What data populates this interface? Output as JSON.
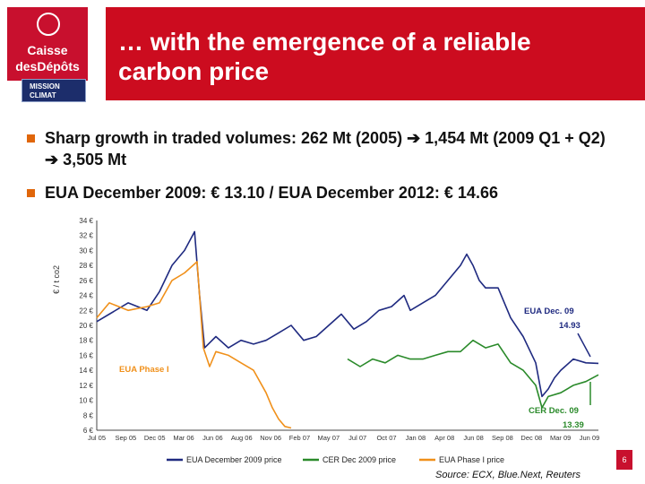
{
  "logo": {
    "line1": "Caisse",
    "line2": "desDépôts",
    "mission_line1": "MISSION",
    "mission_line2": "CLIMAT"
  },
  "title": "… with the emergence of a reliable carbon price",
  "bullets": [
    "Sharp growth in traded volumes: 262 Mt (2005) ➔ 1,454 Mt (2009 Q1 + Q2) ➔ 3,505 Mt",
    "EUA December 2009: € 13.10 / EUA December 2012: € 14.66"
  ],
  "page_number": "6",
  "source": "Source: ECX, Blue.Next, Reuters",
  "colors": {
    "title_bg": "#cc0c1f",
    "bullet": "#e0660a",
    "eua": "#1f2a80",
    "cer": "#2a8a2a",
    "phase1": "#f0901a"
  },
  "chart_data": {
    "type": "line",
    "ylabel": "€ / t co2",
    "y_ticks": [
      "34 €",
      "32 €",
      "30 €",
      "28 €",
      "26 €",
      "24 €",
      "22 €",
      "20 €",
      "18 €",
      "16 €",
      "14 €",
      "12 €",
      "10 €",
      "8 €",
      "6 €"
    ],
    "x_ticks": [
      "Jul 05",
      "Sep 05",
      "Dec 05",
      "Mar 06",
      "Jun 06",
      "Aug 06",
      "Nov 06",
      "Feb 07",
      "May 07",
      "Jul 07",
      "Oct 07",
      "Jan 08",
      "Apr 08",
      "Jun 08",
      "Sep 08",
      "Dec 08",
      "Mar 09",
      "Jun 09"
    ],
    "ylim": [
      6,
      34
    ],
    "x_range": [
      2005.5,
      2009.5
    ],
    "series": [
      {
        "name": "EUA December 2009 price",
        "x": [
          2005.5,
          2005.6,
          2005.75,
          2005.9,
          2006.0,
          2006.1,
          2006.2,
          2006.28,
          2006.32,
          2006.36,
          2006.45,
          2006.55,
          2006.65,
          2006.75,
          2006.85,
          2006.95,
          2007.05,
          2007.15,
          2007.25,
          2007.35,
          2007.45,
          2007.55,
          2007.65,
          2007.75,
          2007.85,
          2007.95,
          2008.0,
          2008.1,
          2008.2,
          2008.3,
          2008.4,
          2008.45,
          2008.5,
          2008.55,
          2008.6,
          2008.7,
          2008.8,
          2008.9,
          2009.0,
          2009.05,
          2009.1,
          2009.15,
          2009.2,
          2009.3,
          2009.4,
          2009.5
        ],
        "values": [
          20.5,
          21.5,
          23,
          22,
          24.5,
          28,
          30,
          32.5,
          24,
          17,
          18.5,
          17,
          18,
          17.5,
          18,
          19,
          20,
          18,
          18.5,
          20,
          21.5,
          19.5,
          20.5,
          22,
          22.5,
          24,
          22,
          23,
          24,
          26,
          28,
          29.5,
          28,
          26,
          25,
          25,
          21,
          18.5,
          15,
          10.5,
          11.5,
          13,
          14,
          15.5,
          15,
          14.93
        ]
      },
      {
        "name": "CER Dec 2009 price",
        "x": [
          2007.5,
          2007.6,
          2007.7,
          2007.8,
          2007.9,
          2008.0,
          2008.1,
          2008.2,
          2008.3,
          2008.4,
          2008.5,
          2008.6,
          2008.7,
          2008.8,
          2008.9,
          2009.0,
          2009.05,
          2009.1,
          2009.2,
          2009.3,
          2009.4,
          2009.5
        ],
        "values": [
          15.5,
          14.5,
          15.5,
          15,
          16,
          15.5,
          15.5,
          16,
          16.5,
          16.5,
          18,
          17,
          17.5,
          15,
          14,
          12,
          9,
          10.5,
          11,
          12,
          12.5,
          13.39
        ]
      },
      {
        "name": "EUA Phase I price",
        "x": [
          2005.5,
          2005.6,
          2005.75,
          2005.9,
          2006.0,
          2006.1,
          2006.2,
          2006.3,
          2006.35,
          2006.4,
          2006.45,
          2006.55,
          2006.65,
          2006.75,
          2006.85,
          2006.9,
          2006.95,
          2007.0,
          2007.05
        ],
        "values": [
          21,
          23,
          22,
          22.5,
          23,
          26,
          27,
          28.5,
          17,
          14.5,
          16.5,
          16,
          15,
          14,
          11,
          9,
          7.5,
          6.5,
          6.3
        ]
      }
    ],
    "annotations": [
      {
        "label": "EUA Dec. 09",
        "value": "14.93"
      },
      {
        "label": "EUA Phase I"
      },
      {
        "label": "CER Dec. 09",
        "value": "13.39"
      }
    ]
  }
}
